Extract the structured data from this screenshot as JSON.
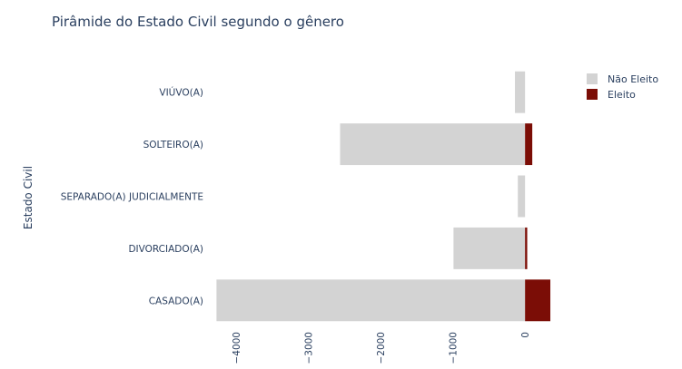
{
  "chart_data": {
    "type": "bar",
    "orientation": "horizontal",
    "barmode": "relative",
    "title": "Pirâmide do Estado Civil segundo o gênero",
    "ylabel": "Estado Civil",
    "xlabel": "",
    "categories": [
      "VIÚVO(A)",
      "SOLTEIRO(A)",
      "SEPARADO(A) JUDICIALMENTE",
      "DIVORCIADO(A)",
      "CASADO(A)"
    ],
    "series": [
      {
        "name": "Não Eleito",
        "color": "#d3d3d3",
        "values": [
          -140,
          -2560,
          -100,
          -990,
          -4270
        ]
      },
      {
        "name": "Eleito",
        "color": "#7b0d06",
        "values": [
          0,
          100,
          0,
          30,
          350
        ]
      }
    ],
    "xlim": [
      -4300,
      400
    ],
    "xticks": [
      -4000,
      -3000,
      -2000,
      -1000,
      0
    ],
    "xtick_labels": [
      "−4000",
      "−3000",
      "−2000",
      "−1000",
      "0"
    ],
    "grid": false,
    "legend_position": "top-right"
  }
}
